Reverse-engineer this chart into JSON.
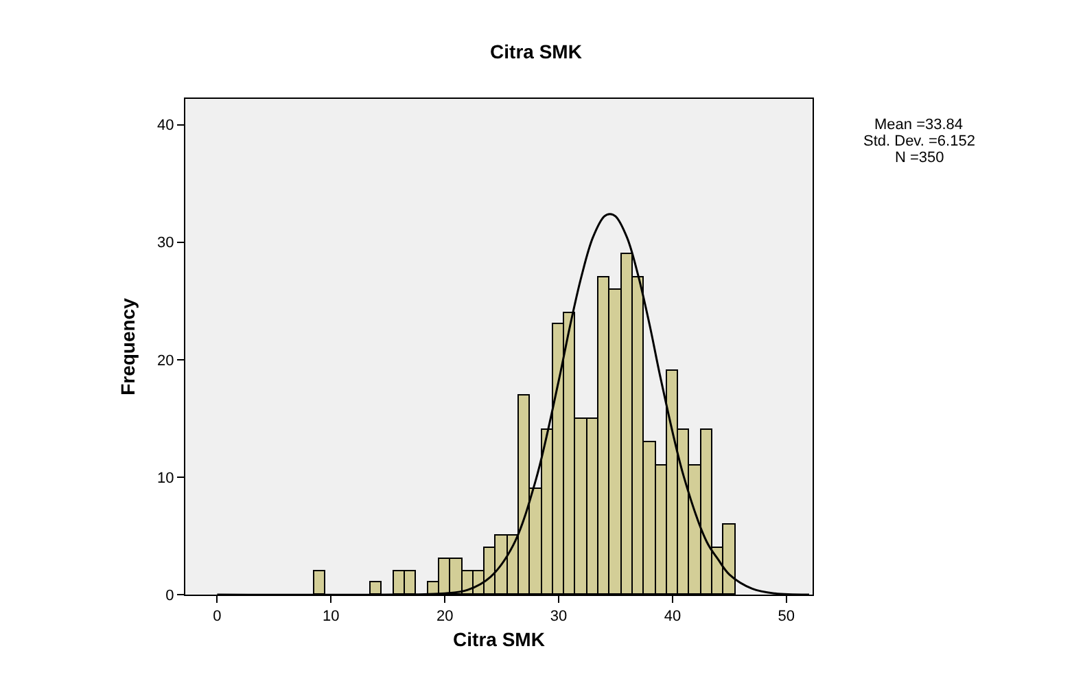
{
  "chart_data": {
    "type": "histogram",
    "title": "Citra SMK",
    "xlabel": "Citra SMK",
    "ylabel": "Frequency",
    "bins": [
      8.5,
      9.5,
      10.5,
      11.5,
      12.5,
      13.5,
      14.5,
      15.5,
      16.5,
      17.5,
      18.5,
      19.5,
      20.5,
      21.5,
      22.5,
      23.5,
      24.5,
      25.5,
      26.5,
      27.5,
      28.5,
      29.5,
      30.5,
      31.5,
      32.5,
      33.5,
      34.5,
      35.5,
      36.5,
      37.5,
      38.5,
      39.5,
      40.5,
      41.5,
      42.5,
      43.5,
      44.5,
      45.5
    ],
    "series": [
      {
        "color": "#d3ce97",
        "values": [
          2,
          0,
          0,
          0,
          0,
          1,
          0,
          2,
          2,
          0,
          1,
          3,
          3,
          2,
          2,
          4,
          5,
          5,
          17,
          9,
          14,
          23,
          24,
          15,
          15,
          27,
          26,
          29,
          27,
          13,
          11,
          19,
          14,
          11,
          14,
          4,
          6
        ]
      },
      {
        "type": "line",
        "color": "#000000",
        "x": [
          0,
          15,
          20,
          22,
          24,
          26,
          28,
          30,
          31,
          32,
          33,
          34,
          34.5,
          35,
          36,
          37,
          38,
          39,
          41,
          43,
          44,
          45,
          47,
          49,
          52
        ],
        "values": [
          0,
          0,
          0.1,
          0.4,
          1.5,
          4.2,
          9.8,
          18.2,
          22.9,
          27.1,
          30.4,
          32.2,
          32.4,
          32.2,
          30.4,
          27.1,
          22.9,
          18.2,
          10,
          4.5,
          3,
          1.7,
          0.5,
          0.1,
          0
        ]
      }
    ],
    "annotations": [
      "Mean =33.84",
      "Std. Dev. =6.152",
      "N =350"
    ],
    "xlim": [
      -2.8,
      52.3
    ],
    "xticks": [
      0,
      10,
      20,
      30,
      40,
      50
    ],
    "ylim": [
      0,
      42.2
    ],
    "yticks": [
      0,
      10,
      20,
      30,
      40
    ],
    "grid": false
  }
}
